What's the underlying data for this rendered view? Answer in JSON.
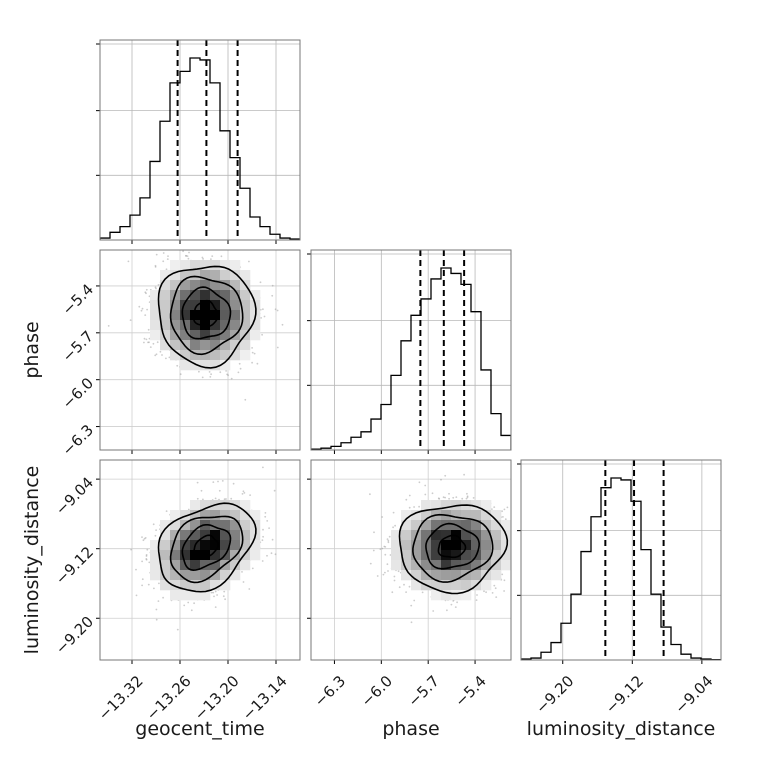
{
  "chart_data": {
    "type": "corner",
    "grid": true,
    "parameters": [
      "geocent_time",
      "phase",
      "luminosity_distance"
    ],
    "axis_labels": {
      "geocent_time": "geocent_time",
      "phase": "phase",
      "luminosity_distance": "luminosity_distance"
    },
    "ranges": {
      "geocent_time": [
        -13.36,
        -13.11
      ],
      "phase": [
        -6.45,
        -5.17
      ],
      "luminosity_distance": [
        -9.248,
        -9.018
      ]
    },
    "ticks": {
      "geocent_time": {
        "values": [
          -13.32,
          -13.26,
          -13.2,
          -13.14
        ],
        "labels": [
          "−13.32",
          "−13.26",
          "−13.20",
          "−13.14"
        ]
      },
      "phase": {
        "values": [
          -6.3,
          -6.0,
          -5.7,
          -5.4
        ],
        "labels": [
          "−6.3",
          "−6.0",
          "−5.7",
          "−5.4"
        ]
      },
      "luminosity_distance": {
        "values": [
          -9.2,
          -9.12,
          -9.04
        ],
        "labels": [
          "−9.20",
          "−9.12",
          "−9.04"
        ]
      }
    },
    "quantiles": {
      "geocent_time": [
        -13.263,
        -13.227,
        -13.188
      ],
      "phase": [
        -5.75,
        -5.6,
        -5.47
      ],
      "luminosity_distance": [
        -9.151,
        -9.118,
        -9.084
      ]
    },
    "histograms": {
      "geocent_time": [
        0.01,
        0.04,
        0.07,
        0.13,
        0.22,
        0.41,
        0.62,
        0.82,
        0.88,
        0.95,
        0.94,
        0.82,
        0.57,
        0.43,
        0.27,
        0.12,
        0.07,
        0.03,
        0.01,
        0.005
      ],
      "phase": [
        0.005,
        0.01,
        0.02,
        0.04,
        0.07,
        0.1,
        0.17,
        0.25,
        0.41,
        0.6,
        0.74,
        0.83,
        0.94,
        1.0,
        0.97,
        0.91,
        0.76,
        0.44,
        0.2,
        0.08
      ],
      "luminosity_distance": [
        0.005,
        0.01,
        0.04,
        0.09,
        0.19,
        0.34,
        0.56,
        0.74,
        0.89,
        0.94,
        0.93,
        0.82,
        0.57,
        0.34,
        0.17,
        0.08,
        0.03,
        0.01,
        0.005,
        0.002
      ]
    },
    "pairs": [
      {
        "x": "geocent_time",
        "y": "phase",
        "x_mean": -13.228,
        "y_mean": -5.58,
        "x_sd": 0.03,
        "y_sd": 0.16,
        "corr": 0.0
      },
      {
        "x": "geocent_time",
        "y": "luminosity_distance",
        "x_mean": -13.228,
        "y_mean": -9.118,
        "x_sd": 0.03,
        "y_sd": 0.025,
        "corr": 0.3
      },
      {
        "x": "phase",
        "y": "luminosity_distance",
        "x_mean": -5.55,
        "y_mean": -9.118,
        "x_sd": 0.17,
        "y_sd": 0.025,
        "corr": 0.05
      }
    ],
    "contour_levels_sigma": [
      0.5,
      1.0,
      1.5,
      2.0
    ]
  }
}
